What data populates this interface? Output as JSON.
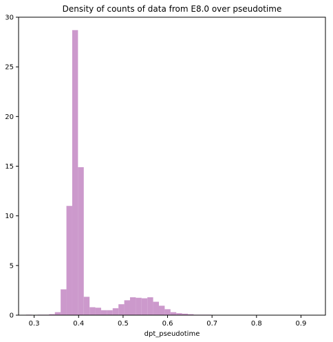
{
  "chart_data": {
    "type": "bar",
    "title": "Density of counts of data from E8.0 over pseudotime",
    "xlabel": "dpt_pseudotime",
    "ylabel": "",
    "xlim": [
      0.265,
      0.955
    ],
    "ylim": [
      0,
      30
    ],
    "x_ticks": [
      0.3,
      0.4,
      0.5,
      0.6,
      0.7,
      0.8,
      0.9
    ],
    "x_tick_labels": [
      "0.3",
      "0.4",
      "0.5",
      "0.6",
      "0.7",
      "0.8",
      "0.9"
    ],
    "y_ticks": [
      0,
      5,
      10,
      15,
      20,
      25,
      30
    ],
    "y_tick_labels": [
      "0",
      "5",
      "10",
      "15",
      "20",
      "25",
      "30"
    ],
    "grid": false,
    "bar_color": "#cc99cc",
    "bin_edges": [
      0.2816,
      0.2946,
      0.3076,
      0.3206,
      0.3336,
      0.3466,
      0.3596,
      0.3726,
      0.3856,
      0.3986,
      0.4116,
      0.4246,
      0.4376,
      0.4506,
      0.4636,
      0.4766,
      0.4896,
      0.5026,
      0.5156,
      0.5286,
      0.5416,
      0.5546,
      0.5676,
      0.5806,
      0.5936,
      0.6066,
      0.6196,
      0.6326,
      0.6456,
      0.6586,
      0.6716,
      0.6846,
      0.6976,
      0.7106,
      0.7236
    ],
    "values": [
      0.05,
      0.0,
      0.05,
      0.05,
      0.1,
      0.3,
      2.6,
      11.0,
      28.7,
      14.9,
      1.85,
      0.8,
      0.75,
      0.5,
      0.5,
      0.7,
      1.1,
      1.5,
      1.8,
      1.75,
      1.7,
      1.8,
      1.35,
      0.95,
      0.6,
      0.3,
      0.2,
      0.15,
      0.1,
      0.05,
      0.05,
      0.05,
      0.03,
      0.0
    ]
  }
}
